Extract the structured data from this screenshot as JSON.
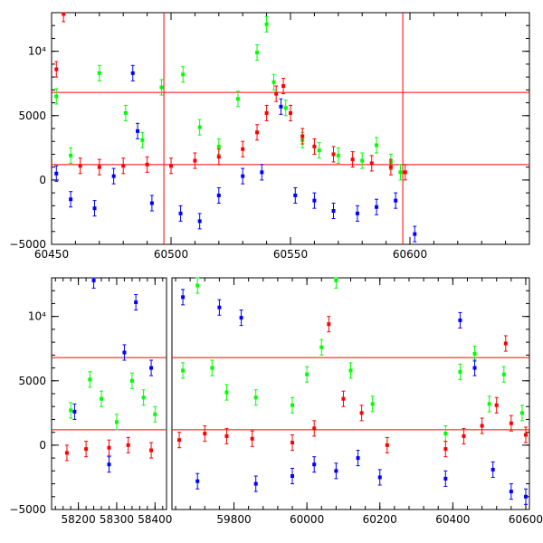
{
  "chart_data": [
    {
      "type": "scatter",
      "title": "",
      "xlabel": "",
      "ylabel": "",
      "xlim": [
        60450,
        60650
      ],
      "ylim": [
        -5000,
        13000
      ],
      "x_ticks": [
        {
          "value": 60450,
          "label": "60450"
        },
        {
          "value": 60500,
          "label": "60500"
        },
        {
          "value": 60550,
          "label": "60550"
        },
        {
          "value": 60600,
          "label": "60600"
        }
      ],
      "y_ticks": [
        {
          "value": -5000,
          "label": "−5000"
        },
        {
          "value": 0,
          "label": "0"
        },
        {
          "value": 5000,
          "label": "5000"
        },
        {
          "value": 10000,
          "label": "10⁴"
        }
      ],
      "hlines": [
        6800,
        1200
      ],
      "vlines": [
        60497,
        60597
      ],
      "grid": false,
      "series": [
        {
          "color": "#00ff00",
          "points": [
            [
              60452,
              6500
            ],
            [
              60458,
              1900
            ],
            [
              60470,
              8300
            ],
            [
              60481,
              5200
            ],
            [
              60488,
              3100
            ],
            [
              60496,
              7200
            ],
            [
              60505,
              8200
            ],
            [
              60512,
              4100
            ],
            [
              60520,
              2600
            ],
            [
              60528,
              6300
            ],
            [
              60536,
              9900
            ],
            [
              60540,
              12100
            ],
            [
              60543,
              7600
            ],
            [
              60548,
              5600
            ],
            [
              60555,
              3100
            ],
            [
              60562,
              2300
            ],
            [
              60570,
              1900
            ],
            [
              60580,
              1500
            ],
            [
              60586,
              2700
            ],
            [
              60592,
              1400
            ],
            [
              60596,
              600
            ]
          ]
        },
        {
          "color": "#0000ff",
          "points": [
            [
              60452,
              500
            ],
            [
              60458,
              -1500
            ],
            [
              60468,
              -2200
            ],
            [
              60476,
              300
            ],
            [
              60484,
              8300
            ],
            [
              60486,
              3800
            ],
            [
              60492,
              -1800
            ],
            [
              60504,
              -2600
            ],
            [
              60512,
              -3200
            ],
            [
              60520,
              -1200
            ],
            [
              60530,
              300
            ],
            [
              60538,
              600
            ],
            [
              60546,
              5700
            ],
            [
              60552,
              -1200
            ],
            [
              60560,
              -1600
            ],
            [
              60568,
              -2400
            ],
            [
              60578,
              -2600
            ],
            [
              60586,
              -2100
            ],
            [
              60594,
              -1600
            ],
            [
              60602,
              -4200
            ]
          ]
        },
        {
          "color": "#ff0000",
          "points": [
            [
              60452,
              8600
            ],
            [
              60455,
              12900
            ],
            [
              60462,
              1100
            ],
            [
              60470,
              1000
            ],
            [
              60480,
              1100
            ],
            [
              60490,
              1200
            ],
            [
              60500,
              1100
            ],
            [
              60510,
              1500
            ],
            [
              60520,
              1800
            ],
            [
              60530,
              2400
            ],
            [
              60536,
              3700
            ],
            [
              60540,
              5200
            ],
            [
              60544,
              6700
            ],
            [
              60547,
              7300
            ],
            [
              60550,
              5200
            ],
            [
              60555,
              3400
            ],
            [
              60560,
              2600
            ],
            [
              60568,
              2000
            ],
            [
              60576,
              1600
            ],
            [
              60584,
              1300
            ],
            [
              60592,
              1000
            ],
            [
              60598,
              600
            ]
          ]
        }
      ]
    },
    {
      "type": "scatter",
      "title": "",
      "xlabel": "",
      "ylabel": "",
      "ylim": [
        -5000,
        13000
      ],
      "y_ticks": [
        {
          "value": -5000,
          "label": "−5000"
        },
        {
          "value": 0,
          "label": "0"
        },
        {
          "value": 5000,
          "label": "5000"
        },
        {
          "value": 10000,
          "label": "10⁴"
        }
      ],
      "hlines": [
        6800,
        1200
      ],
      "broken_x_axis": [
        {
          "xlim": [
            58130,
            58430
          ],
          "x_ticks": [
            {
              "value": 58200,
              "label": "58200"
            },
            {
              "value": 58300,
              "label": "58300"
            },
            {
              "value": 58400,
              "label": "58400"
            }
          ]
        },
        {
          "xlim": [
            59630,
            60610
          ],
          "x_ticks": [
            {
              "value": 59800,
              "label": "59800"
            },
            {
              "value": 60000,
              "label": "60000"
            },
            {
              "value": 60200,
              "label": "60200"
            },
            {
              "value": 60400,
              "label": "60400"
            },
            {
              "value": 60600,
              "label": "60600"
            }
          ]
        }
      ],
      "grid": false,
      "series": [
        {
          "color": "#00ff00",
          "points": [
            [
              58180,
              2700
            ],
            [
              58230,
              5100
            ],
            [
              58260,
              3600
            ],
            [
              58300,
              1800
            ],
            [
              58340,
              5000
            ],
            [
              58370,
              3700
            ],
            [
              58400,
              2400
            ],
            [
              59660,
              5800
            ],
            [
              59700,
              12400
            ],
            [
              59740,
              6000
            ],
            [
              59780,
              4100
            ],
            [
              59860,
              3700
            ],
            [
              59960,
              3100
            ],
            [
              60000,
              5500
            ],
            [
              60040,
              7600
            ],
            [
              60080,
              12800
            ],
            [
              60120,
              5800
            ],
            [
              60180,
              3200
            ],
            [
              60380,
              900
            ],
            [
              60420,
              5700
            ],
            [
              60460,
              7100
            ],
            [
              60500,
              3200
            ],
            [
              60540,
              5500
            ],
            [
              60590,
              2500
            ]
          ]
        },
        {
          "color": "#0000ff",
          "points": [
            [
              58190,
              2600
            ],
            [
              58240,
              12800
            ],
            [
              58280,
              -1500
            ],
            [
              58320,
              7200
            ],
            [
              58350,
              11100
            ],
            [
              58390,
              6000
            ],
            [
              59660,
              11500
            ],
            [
              59700,
              -2800
            ],
            [
              59760,
              10700
            ],
            [
              59820,
              9900
            ],
            [
              59860,
              -3000
            ],
            [
              59960,
              -2400
            ],
            [
              60020,
              -1500
            ],
            [
              60080,
              -2000
            ],
            [
              60140,
              -1000
            ],
            [
              60200,
              -2500
            ],
            [
              60380,
              -2600
            ],
            [
              60420,
              9700
            ],
            [
              60460,
              6000
            ],
            [
              60510,
              -1900
            ],
            [
              60560,
              -3600
            ],
            [
              60600,
              -4000
            ]
          ]
        },
        {
          "color": "#ff0000",
          "points": [
            [
              58170,
              -600
            ],
            [
              58220,
              -300
            ],
            [
              58280,
              -200
            ],
            [
              58330,
              0
            ],
            [
              58390,
              -400
            ],
            [
              59650,
              400
            ],
            [
              59720,
              900
            ],
            [
              59780,
              700
            ],
            [
              59850,
              500
            ],
            [
              59960,
              200
            ],
            [
              60020,
              1300
            ],
            [
              60060,
              9400
            ],
            [
              60100,
              3600
            ],
            [
              60150,
              2500
            ],
            [
              60220,
              0
            ],
            [
              60380,
              -300
            ],
            [
              60430,
              700
            ],
            [
              60480,
              1500
            ],
            [
              60520,
              3100
            ],
            [
              60545,
              7900
            ],
            [
              60560,
              1700
            ],
            [
              60600,
              800
            ]
          ]
        }
      ]
    }
  ]
}
